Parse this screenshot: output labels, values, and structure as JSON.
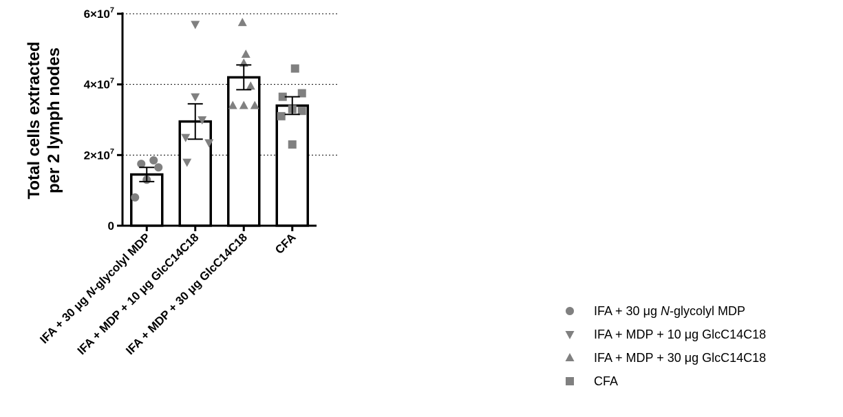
{
  "chart_data": {
    "type": "bar",
    "ylabel_lines": [
      "Total cells extracted",
      "per 2 lymph nodes"
    ],
    "ylim": [
      0,
      60000000
    ],
    "yticks": [
      {
        "value": 0,
        "label": "0",
        "exp": ""
      },
      {
        "value": 20000000,
        "label": "2×10",
        "exp": "7"
      },
      {
        "value": 40000000,
        "label": "4×10",
        "exp": "7"
      },
      {
        "value": 60000000,
        "label": "6×10",
        "exp": "7"
      }
    ],
    "grid": "horizontal dotted",
    "legend_position": "bottom-right",
    "categories": [
      {
        "parts": [
          {
            "t": "IFA + 30 "
          },
          {
            "t": "μ"
          },
          {
            "t": "g "
          },
          {
            "t": "N",
            "i": true
          },
          {
            "t": "-glycolyl MDP"
          }
        ]
      },
      {
        "parts": [
          {
            "t": "IFA + MDP + 10 "
          },
          {
            "t": "μ"
          },
          {
            "t": "g GlcC14C18"
          }
        ]
      },
      {
        "parts": [
          {
            "t": "IFA + MDP + 30 "
          },
          {
            "t": "μ"
          },
          {
            "t": "g GlcC14C18"
          }
        ]
      },
      {
        "parts": [
          {
            "t": "CFA"
          }
        ]
      }
    ],
    "series": [
      {
        "name_parts": [
          {
            "t": "IFA + 30 "
          },
          {
            "t": "μ"
          },
          {
            "t": "g "
          },
          {
            "t": "N",
            "i": true
          },
          {
            "t": "-glycolyl MDP"
          }
        ],
        "marker": "circle",
        "color": "#808080",
        "mean": 14500000,
        "sem": 2000000,
        "points": [
          8000000,
          13000000,
          16500000,
          17500000,
          18500000
        ]
      },
      {
        "name_parts": [
          {
            "t": "IFA + MDP + 10 "
          },
          {
            "t": "μ"
          },
          {
            "t": "g GlcC14C18"
          }
        ],
        "marker": "triangle-down",
        "color": "#808080",
        "mean": 29500000,
        "sem": 5000000,
        "points": [
          57000000,
          36500000,
          30000000,
          25000000,
          23500000,
          18000000
        ]
      },
      {
        "name_parts": [
          {
            "t": "IFA + MDP + 30 "
          },
          {
            "t": "μ"
          },
          {
            "t": "g GlcC14C18"
          }
        ],
        "marker": "triangle-up",
        "color": "#808080",
        "mean": 42000000,
        "sem": 3500000,
        "points": [
          57500000,
          48500000,
          46000000,
          39500000,
          34000000,
          34000000,
          34000000
        ]
      },
      {
        "name_parts": [
          {
            "t": "CFA"
          }
        ],
        "marker": "square",
        "color": "#808080",
        "mean": 34000000,
        "sem": 2500000,
        "points": [
          44500000,
          37500000,
          36500000,
          33000000,
          32500000,
          31000000,
          23000000
        ]
      }
    ]
  }
}
